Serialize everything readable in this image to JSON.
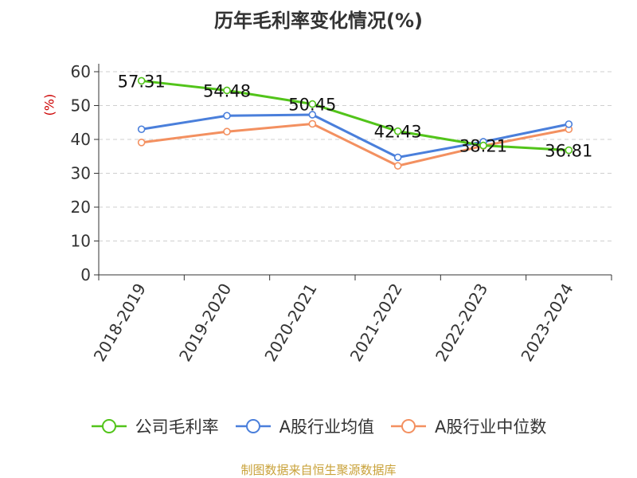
{
  "chart_data": {
    "type": "line",
    "title": "历年毛利率变化情况(%)",
    "ylabel": "(%)",
    "ylim": [
      0,
      60
    ],
    "yticks": [
      0,
      10,
      20,
      30,
      40,
      50,
      60
    ],
    "categories": [
      "2018-2019",
      "2019-2020",
      "2020-2021",
      "2021-2022",
      "2022-2023",
      "2023-2024"
    ],
    "series": [
      {
        "name": "公司毛利率",
        "color": "#52c41a",
        "values": [
          57.31,
          54.48,
          50.45,
          42.43,
          38.21,
          36.81
        ],
        "labels": [
          "57.31",
          "54.48",
          "50.45",
          "42.43",
          "38.21",
          "36.81"
        ]
      },
      {
        "name": "A股行业均值",
        "color": "#4a7fdb",
        "values": [
          43.0,
          47.0,
          47.3,
          34.7,
          39.3,
          44.5
        ]
      },
      {
        "name": "A股行业中位数",
        "color": "#f39060",
        "values": [
          39.1,
          42.3,
          44.6,
          32.2,
          38.1,
          43.0
        ]
      }
    ],
    "grid": true,
    "legend": "bottom"
  },
  "footer": "制图数据来自恒生聚源数据库"
}
